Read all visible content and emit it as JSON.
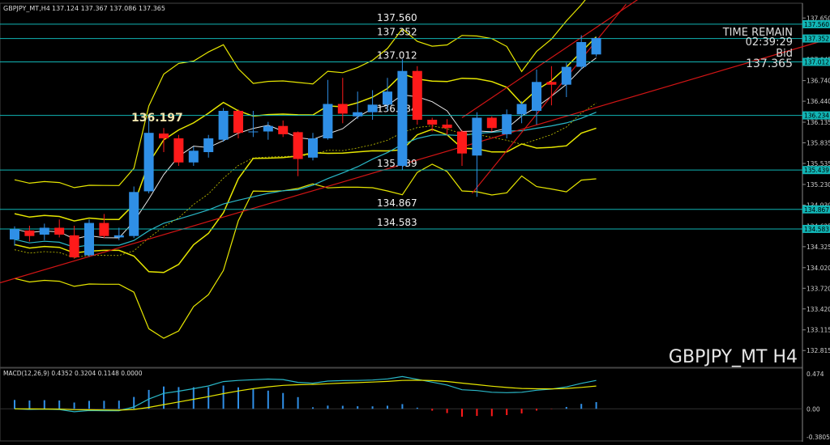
{
  "header": {
    "symbol": "GBPJPY_MT,H4",
    "ohlc": "137.124 137.367 137.086 137.365"
  },
  "info_panel": {
    "time_remain_label": "TIME REMAIN",
    "time_remain": "02:39:29",
    "bid_label": "Bid",
    "bid": "137.365"
  },
  "watermark": "GBPJPY_MT H4",
  "macd": {
    "label": "MACD(12,26,9) 0.4352 0.3204 0.1148 0.0000",
    "scale_labels": [
      "0.474",
      "0.00",
      "-0.3805"
    ]
  },
  "colors": {
    "bull": "#2f8fe6",
    "bear": "#ff1a1a",
    "level": "#11b5b5",
    "trend": "#d21515",
    "envelope": "#e6e600",
    "ma_cyan": "#2ab8c8"
  },
  "chart_data": {
    "type": "candlestick",
    "y_axis_labels": [
      "137.650",
      "137.560",
      "137.352",
      "137.045",
      "137.012",
      "136.740",
      "136.440",
      "136.234",
      "136.135",
      "135.835",
      "135.535",
      "135.439",
      "135.230",
      "134.930",
      "134.867",
      "134.625",
      "134.583",
      "134.325",
      "134.020",
      "133.720",
      "133.420",
      "133.115",
      "132.815"
    ],
    "ylim": [
      132.7,
      137.7
    ],
    "level_lines": [
      {
        "price": 137.56,
        "label": "137.560",
        "axis_tag": "137.560"
      },
      {
        "price": 137.352,
        "label": "137.352",
        "axis_tag": "137.352"
      },
      {
        "price": 137.012,
        "label": "137.012",
        "axis_tag": "137.012"
      },
      {
        "price": 136.234,
        "label": "136.234",
        "axis_tag": "136.234"
      },
      {
        "price": 135.439,
        "label": "135.439",
        "axis_tag": "135.439"
      },
      {
        "price": 134.867,
        "label": "134.867",
        "axis_tag": "134.867"
      },
      {
        "price": 134.583,
        "label": "134.583",
        "axis_tag": "134.583"
      }
    ],
    "annotation": {
      "text": "136.197",
      "price": 136.197
    },
    "candles": [
      {
        "o": 134.43,
        "h": 134.62,
        "l": 134.34,
        "c": 134.58
      },
      {
        "o": 134.56,
        "h": 134.63,
        "l": 134.4,
        "c": 134.48
      },
      {
        "o": 134.5,
        "h": 134.66,
        "l": 134.42,
        "c": 134.6
      },
      {
        "o": 134.6,
        "h": 134.72,
        "l": 134.46,
        "c": 134.5
      },
      {
        "o": 134.49,
        "h": 134.63,
        "l": 134.15,
        "c": 134.17
      },
      {
        "o": 134.2,
        "h": 134.72,
        "l": 134.18,
        "c": 134.67
      },
      {
        "o": 134.67,
        "h": 134.8,
        "l": 134.45,
        "c": 134.48
      },
      {
        "o": 134.46,
        "h": 134.6,
        "l": 134.42,
        "c": 134.49
      },
      {
        "o": 134.48,
        "h": 135.2,
        "l": 134.45,
        "c": 135.12
      },
      {
        "o": 135.13,
        "h": 136.2,
        "l": 135.1,
        "c": 135.98
      },
      {
        "o": 135.97,
        "h": 136.05,
        "l": 135.7,
        "c": 135.9
      },
      {
        "o": 135.9,
        "h": 135.95,
        "l": 135.5,
        "c": 135.55
      },
      {
        "o": 135.55,
        "h": 135.78,
        "l": 135.5,
        "c": 135.72
      },
      {
        "o": 135.7,
        "h": 135.95,
        "l": 135.62,
        "c": 135.9
      },
      {
        "o": 135.88,
        "h": 136.34,
        "l": 135.85,
        "c": 136.3
      },
      {
        "o": 136.3,
        "h": 136.32,
        "l": 135.9,
        "c": 135.98
      },
      {
        "o": 136.0,
        "h": 136.3,
        "l": 135.92,
        "c": 136.0
      },
      {
        "o": 136.0,
        "h": 136.14,
        "l": 135.88,
        "c": 136.08
      },
      {
        "o": 136.08,
        "h": 136.16,
        "l": 135.92,
        "c": 135.96
      },
      {
        "o": 135.99,
        "h": 136.0,
        "l": 135.35,
        "c": 135.6
      },
      {
        "o": 135.62,
        "h": 135.98,
        "l": 135.58,
        "c": 135.9
      },
      {
        "o": 135.9,
        "h": 136.75,
        "l": 135.88,
        "c": 136.4
      },
      {
        "o": 136.4,
        "h": 136.78,
        "l": 136.12,
        "c": 136.26
      },
      {
        "o": 136.22,
        "h": 136.58,
        "l": 136.18,
        "c": 136.28
      },
      {
        "o": 136.28,
        "h": 136.6,
        "l": 136.17,
        "c": 136.39
      },
      {
        "o": 136.39,
        "h": 136.78,
        "l": 136.3,
        "c": 136.58
      },
      {
        "o": 135.5,
        "h": 137.05,
        "l": 135.44,
        "c": 136.88
      },
      {
        "o": 136.88,
        "h": 136.95,
        "l": 136.1,
        "c": 136.17
      },
      {
        "o": 136.17,
        "h": 136.2,
        "l": 136.0,
        "c": 136.1
      },
      {
        "o": 136.1,
        "h": 136.18,
        "l": 135.95,
        "c": 136.05
      },
      {
        "o": 136.0,
        "h": 136.02,
        "l": 135.5,
        "c": 135.68
      },
      {
        "o": 135.65,
        "h": 136.28,
        "l": 135.05,
        "c": 136.2
      },
      {
        "o": 136.2,
        "h": 136.22,
        "l": 136.0,
        "c": 136.05
      },
      {
        "o": 135.96,
        "h": 136.32,
        "l": 135.9,
        "c": 136.25
      },
      {
        "o": 136.25,
        "h": 136.44,
        "l": 136.12,
        "c": 136.4
      },
      {
        "o": 136.3,
        "h": 136.9,
        "l": 136.1,
        "c": 136.72
      },
      {
        "o": 136.72,
        "h": 136.95,
        "l": 136.38,
        "c": 136.68
      },
      {
        "o": 136.68,
        "h": 137.0,
        "l": 136.5,
        "c": 136.94
      },
      {
        "o": 136.94,
        "h": 137.4,
        "l": 136.9,
        "c": 137.3
      },
      {
        "o": 137.12,
        "h": 137.37,
        "l": 137.09,
        "c": 137.36
      }
    ]
  }
}
